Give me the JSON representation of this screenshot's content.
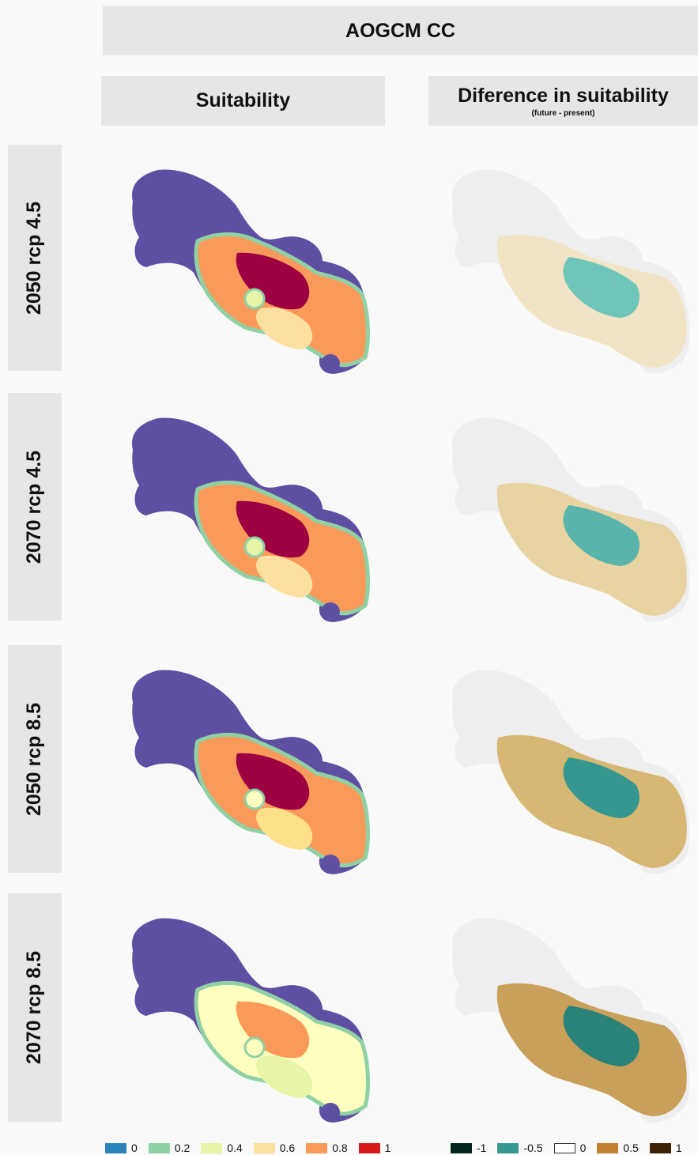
{
  "header": {
    "title": "AOGCM CC",
    "col_left": "Suitability",
    "col_right": "Diference in suitability",
    "col_right_sub": "(future - present)"
  },
  "rows": [
    {
      "label": "2050 rcp 4.5"
    },
    {
      "label": "2070 rcp 4.5"
    },
    {
      "label": "2050 rcp 8.5"
    },
    {
      "label": "2070 rcp 8.5"
    }
  ],
  "legend_suitability": [
    {
      "label": "0",
      "color": "#2b83ba"
    },
    {
      "label": "0.2",
      "color": "#8fd1a5"
    },
    {
      "label": "0.4",
      "color": "#e6f5a8"
    },
    {
      "label": "0.6",
      "color": "#fde0a0"
    },
    {
      "label": "0.8",
      "color": "#f99a5b"
    },
    {
      "label": "1",
      "color": "#d7191c"
    }
  ],
  "legend_difference": [
    {
      "label": "-1",
      "color": "#01261f"
    },
    {
      "label": "-0.5",
      "color": "#35978f"
    },
    {
      "label": "0",
      "color": "#ffffff"
    },
    {
      "label": "0.5",
      "color": "#bf812d"
    },
    {
      "label": "1",
      "color": "#3d2206"
    }
  ],
  "colors": {
    "background_region": "#5e4fa2",
    "difference_base": "#eeeeee"
  }
}
